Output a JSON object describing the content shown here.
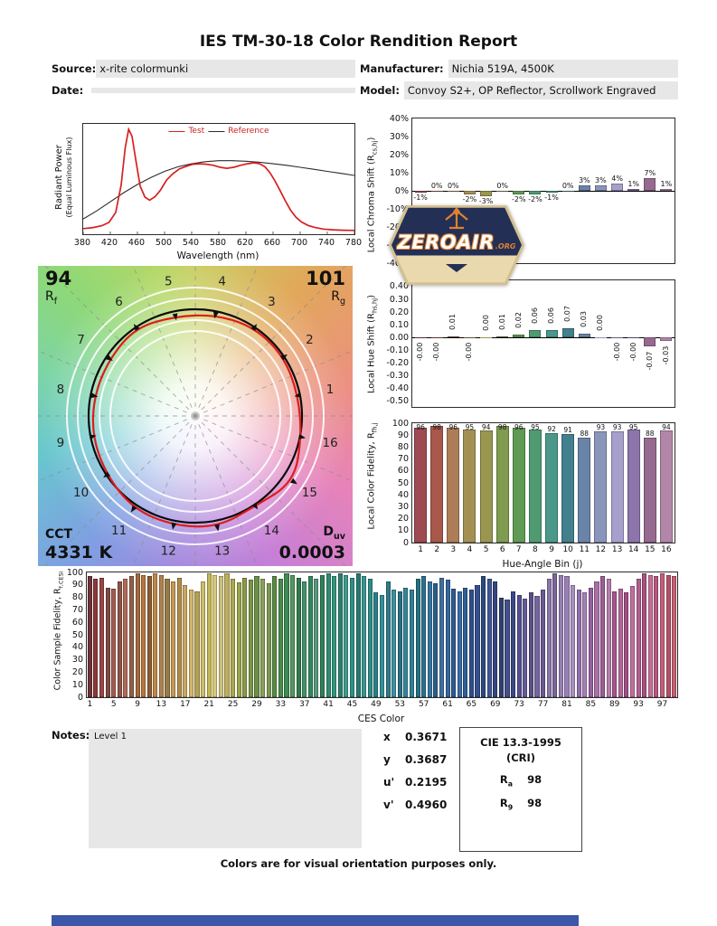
{
  "title": "IES TM-30-18 Color Rendition Report",
  "header": {
    "source_label": "Source:",
    "source_value": "x-rite colormunki",
    "date_label": "Date:",
    "date_value": "",
    "manufacturer_label": "Manufacturer:",
    "manufacturer_value": "Nichia 519A, 4500K",
    "model_label": "Model:",
    "model_value": "Convoy S2+, OP Reflector, Scrollwork Engraved"
  },
  "notes": {
    "label": "Notes:",
    "content": "Level 1"
  },
  "chromaticity": {
    "rows": [
      {
        "label": "x",
        "value": "0.3671"
      },
      {
        "label": "y",
        "value": "0.3687"
      },
      {
        "label": "u'",
        "value": "0.2195"
      },
      {
        "label": "v'",
        "value": "0.4960"
      }
    ]
  },
  "cie": {
    "title": "CIE 13.3-1995",
    "subtitle": "(CRI)",
    "rows": [
      {
        "pre": "R",
        "sub": "a",
        "value": "98"
      },
      {
        "pre": "R",
        "sub": "9",
        "value": "98"
      }
    ]
  },
  "footer": "Colors are for visual orientation purposes only.",
  "badge": {
    "name": "ZEROAIR",
    "tld": ".ORG"
  },
  "hue_bin_colors": [
    "#9e4a52",
    "#a8574b",
    "#ad7d58",
    "#a59054",
    "#99964f",
    "#7e9b4f",
    "#5f9a55",
    "#509a72",
    "#4a988a",
    "#41808c",
    "#6a84a8",
    "#8a95bb",
    "#a7a0cc",
    "#8d74ab",
    "#96698f",
    "#b286a8"
  ],
  "chart_data": [
    {
      "id": "spd",
      "type": "line",
      "xlabel": "Wavelength (nm)",
      "ylabel_line1": "Radiant Power",
      "ylabel_line2": "(Equal Luminous Flux)",
      "xlim": [
        380,
        780
      ],
      "x_ticks": [
        380,
        420,
        460,
        500,
        540,
        580,
        620,
        660,
        700,
        740,
        780
      ],
      "legend_position": "top",
      "series": [
        {
          "name": "Test",
          "color": "#d81f1f",
          "points": [
            [
              380,
              0.02
            ],
            [
              395,
              0.03
            ],
            [
              408,
              0.05
            ],
            [
              418,
              0.08
            ],
            [
              428,
              0.18
            ],
            [
              436,
              0.45
            ],
            [
              442,
              0.82
            ],
            [
              447,
              1.0
            ],
            [
              452,
              0.93
            ],
            [
              458,
              0.68
            ],
            [
              464,
              0.44
            ],
            [
              471,
              0.33
            ],
            [
              478,
              0.3
            ],
            [
              486,
              0.335
            ],
            [
              494,
              0.4
            ],
            [
              503,
              0.5
            ],
            [
              512,
              0.56
            ],
            [
              522,
              0.61
            ],
            [
              532,
              0.635
            ],
            [
              542,
              0.655
            ],
            [
              552,
              0.66
            ],
            [
              562,
              0.655
            ],
            [
              572,
              0.645
            ],
            [
              582,
              0.625
            ],
            [
              592,
              0.615
            ],
            [
              602,
              0.625
            ],
            [
              612,
              0.645
            ],
            [
              622,
              0.66
            ],
            [
              632,
              0.67
            ],
            [
              640,
              0.66
            ],
            [
              648,
              0.63
            ],
            [
              655,
              0.575
            ],
            [
              662,
              0.5
            ],
            [
              670,
              0.4
            ],
            [
              678,
              0.295
            ],
            [
              686,
              0.2
            ],
            [
              694,
              0.13
            ],
            [
              702,
              0.085
            ],
            [
              712,
              0.05
            ],
            [
              722,
              0.03
            ],
            [
              734,
              0.015
            ],
            [
              748,
              0.008
            ],
            [
              764,
              0.004
            ],
            [
              780,
              0.002
            ]
          ]
        },
        {
          "name": "Reference",
          "color": "#2b2b2b",
          "points": [
            [
              380,
              0.115
            ],
            [
              400,
              0.195
            ],
            [
              420,
              0.285
            ],
            [
              440,
              0.375
            ],
            [
              460,
              0.455
            ],
            [
              480,
              0.525
            ],
            [
              500,
              0.585
            ],
            [
              520,
              0.63
            ],
            [
              540,
              0.66
            ],
            [
              560,
              0.68
            ],
            [
              580,
              0.69
            ],
            [
              600,
              0.69
            ],
            [
              620,
              0.685
            ],
            [
              640,
              0.675
            ],
            [
              660,
              0.66
            ],
            [
              680,
              0.645
            ],
            [
              700,
              0.625
            ],
            [
              720,
              0.605
            ],
            [
              740,
              0.585
            ],
            [
              760,
              0.565
            ],
            [
              780,
              0.545
            ]
          ]
        }
      ]
    },
    {
      "id": "local_chroma_shift",
      "type": "bar",
      "ylabel": {
        "pre": "Local Chroma Shift (R",
        "sub": "cs,hj",
        "post": ")"
      },
      "ylim": [
        -40,
        40
      ],
      "categories": [
        1,
        2,
        3,
        4,
        5,
        6,
        7,
        8,
        9,
        10,
        11,
        12,
        13,
        14,
        15,
        16
      ],
      "values": [
        -1,
        0,
        0,
        -2,
        -3,
        0,
        -2,
        -2,
        -1,
        0,
        3,
        3,
        4,
        1,
        7,
        1
      ],
      "labels": [
        "-1%",
        "0%",
        "0%",
        "-2%",
        "-3%",
        "0%",
        "-2%",
        "-2%",
        "-1%",
        "0%",
        "3%",
        "3%",
        "4%",
        "1%",
        "7%",
        "1%"
      ]
    },
    {
      "id": "local_hue_shift",
      "type": "bar",
      "ylabel": {
        "pre": "Local Hue Shift (R",
        "sub": "hs,hj",
        "post": ")"
      },
      "ylim": [
        -0.55,
        0.45
      ],
      "categories": [
        1,
        2,
        3,
        4,
        5,
        6,
        7,
        8,
        9,
        10,
        11,
        12,
        13,
        14,
        15,
        16
      ],
      "values": [
        -0.001,
        -0.001,
        0.01,
        -0.001,
        0.001,
        0.01,
        0.02,
        0.06,
        0.06,
        0.07,
        0.03,
        0.001,
        -0.001,
        -0.001,
        -0.07,
        -0.03
      ],
      "labels": [
        "-0.00",
        "-0.00",
        "0.01",
        "-0.00",
        "0.00",
        "0.01",
        "0.02",
        "0.06",
        "0.06",
        "0.07",
        "0.03",
        "0.00",
        "-0.00",
        "-0.00",
        "-0.07",
        "-0.03"
      ]
    },
    {
      "id": "local_color_fidelity",
      "type": "bar",
      "xlabel": "Hue-Angle Bin (j)",
      "ylabel": {
        "pre": "Local Color Fidelity, R",
        "sub": "fh,j",
        "post": ""
      },
      "ylim": [
        0,
        100
      ],
      "categories": [
        1,
        2,
        3,
        4,
        5,
        6,
        7,
        8,
        9,
        10,
        11,
        12,
        13,
        14,
        15,
        16
      ],
      "values": [
        96,
        98,
        96,
        95,
        94,
        98,
        96,
        95,
        92,
        91,
        88,
        93,
        93,
        95,
        88,
        94
      ]
    },
    {
      "id": "ces_fidelity",
      "type": "bar",
      "xlabel": "CES Color",
      "ylabel": {
        "pre": "Color Sample Fidelity, R",
        "sub": "f,CESi",
        "post": ""
      },
      "ylim": [
        0,
        100
      ],
      "x_ticks": [
        1,
        5,
        9,
        13,
        17,
        21,
        25,
        29,
        33,
        37,
        41,
        45,
        49,
        53,
        57,
        61,
        65,
        69,
        73,
        77,
        81,
        85,
        89,
        93,
        97
      ],
      "values": [
        97,
        95,
        96,
        88,
        87,
        93,
        95,
        97,
        99,
        98,
        97,
        99,
        98,
        95,
        93,
        96,
        90,
        86,
        85,
        93,
        99,
        98,
        97,
        99,
        95,
        92,
        96,
        94,
        97,
        95,
        91,
        97,
        95,
        99,
        98,
        96,
        93,
        97,
        95,
        98,
        99,
        97,
        99,
        98,
        96,
        99,
        97,
        95,
        84,
        82,
        93,
        86,
        85,
        88,
        86,
        95,
        97,
        93,
        91,
        96,
        94,
        87,
        85,
        88,
        86,
        90,
        97,
        95,
        93,
        80,
        78,
        85,
        82,
        79,
        84,
        81,
        86,
        95,
        99,
        98,
        97,
        90,
        86,
        84,
        88,
        93,
        97,
        95,
        85,
        87,
        84,
        89,
        95,
        99,
        98,
        97,
        99,
        98,
        97
      ],
      "colors": [
        "#6f3439",
        "#8a3a3a",
        "#9c4343",
        "#7d4a42",
        "#a35a50",
        "#8f5347",
        "#b06a58",
        "#925e48",
        "#a06a3f",
        "#b5763f",
        "#8a5c35",
        "#c08747",
        "#ab8250",
        "#977a45",
        "#c39a55",
        "#b08a48",
        "#c9a85f",
        "#d2b468",
        "#b4a055",
        "#ccbd68",
        "#c3b64f",
        "#d8c878",
        "#ccc07e",
        "#bdad60",
        "#a9a84f",
        "#9aa44a",
        "#8a9a45",
        "#7a9449",
        "#6a8f45",
        "#8aa05a",
        "#7a9a50",
        "#5a8a45",
        "#4a8a4a",
        "#3f8a55",
        "#55955f",
        "#2f7a4a",
        "#45906a",
        "#35855f",
        "#55997a",
        "#2f7f5a",
        "#2f8a70",
        "#35957f",
        "#2a7f6f",
        "#3f9a8a",
        "#2f8f85",
        "#25796f",
        "#3a958f",
        "#2f8a85",
        "#2a7f85",
        "#35909a",
        "#2f7a85",
        "#3f8f9f",
        "#2a6f7f",
        "#35859a",
        "#2f7f95",
        "#25707f",
        "#2f6f8f",
        "#35759f",
        "#2a5f85",
        "#3f6f9f",
        "#35659a",
        "#2f5a8f",
        "#3a6aa5",
        "#2f5f95",
        "#2f4f8a",
        "#35508f",
        "#2a4a7f",
        "#3f5595",
        "#35457f",
        "#2f406f",
        "#454f8a",
        "#3a4a85",
        "#554f8f",
        "#655a9a",
        "#5a4f85",
        "#75659f",
        "#6a5a90",
        "#8a75aa",
        "#7a659a",
        "#957fb0",
        "#9a7fb5",
        "#aa8fc0",
        "#8f6faa",
        "#a57fb5",
        "#95609f",
        "#aa70a5",
        "#9a5f95",
        "#b57faa",
        "#a5548f",
        "#b5649a",
        "#a04f85",
        "#c0709f",
        "#b05f8f",
        "#aa4f7f",
        "#c56f95",
        "#b5577f",
        "#c06078",
        "#b54f68",
        "#c45f72"
      ]
    },
    {
      "id": "color_vector_graphic",
      "type": "polar_gamut",
      "rf_value": "94",
      "rf_pre": "R",
      "rf_sub": "f",
      "rg_value": "101",
      "rg_pre": "R",
      "rg_sub": "g",
      "cct_label": "CCT",
      "cct_value": "4331 K",
      "duv_pre": "D",
      "duv_sub": "uv",
      "duv_value": "0.0003",
      "bins": [
        1,
        2,
        3,
        4,
        5,
        6,
        7,
        8,
        9,
        10,
        11,
        12,
        13,
        14,
        15,
        16
      ],
      "chroma_shift_pct": [
        -1,
        0,
        0,
        -2,
        -3,
        0,
        -2,
        -2,
        -1,
        0,
        3,
        3,
        4,
        1,
        7,
        1
      ]
    }
  ]
}
